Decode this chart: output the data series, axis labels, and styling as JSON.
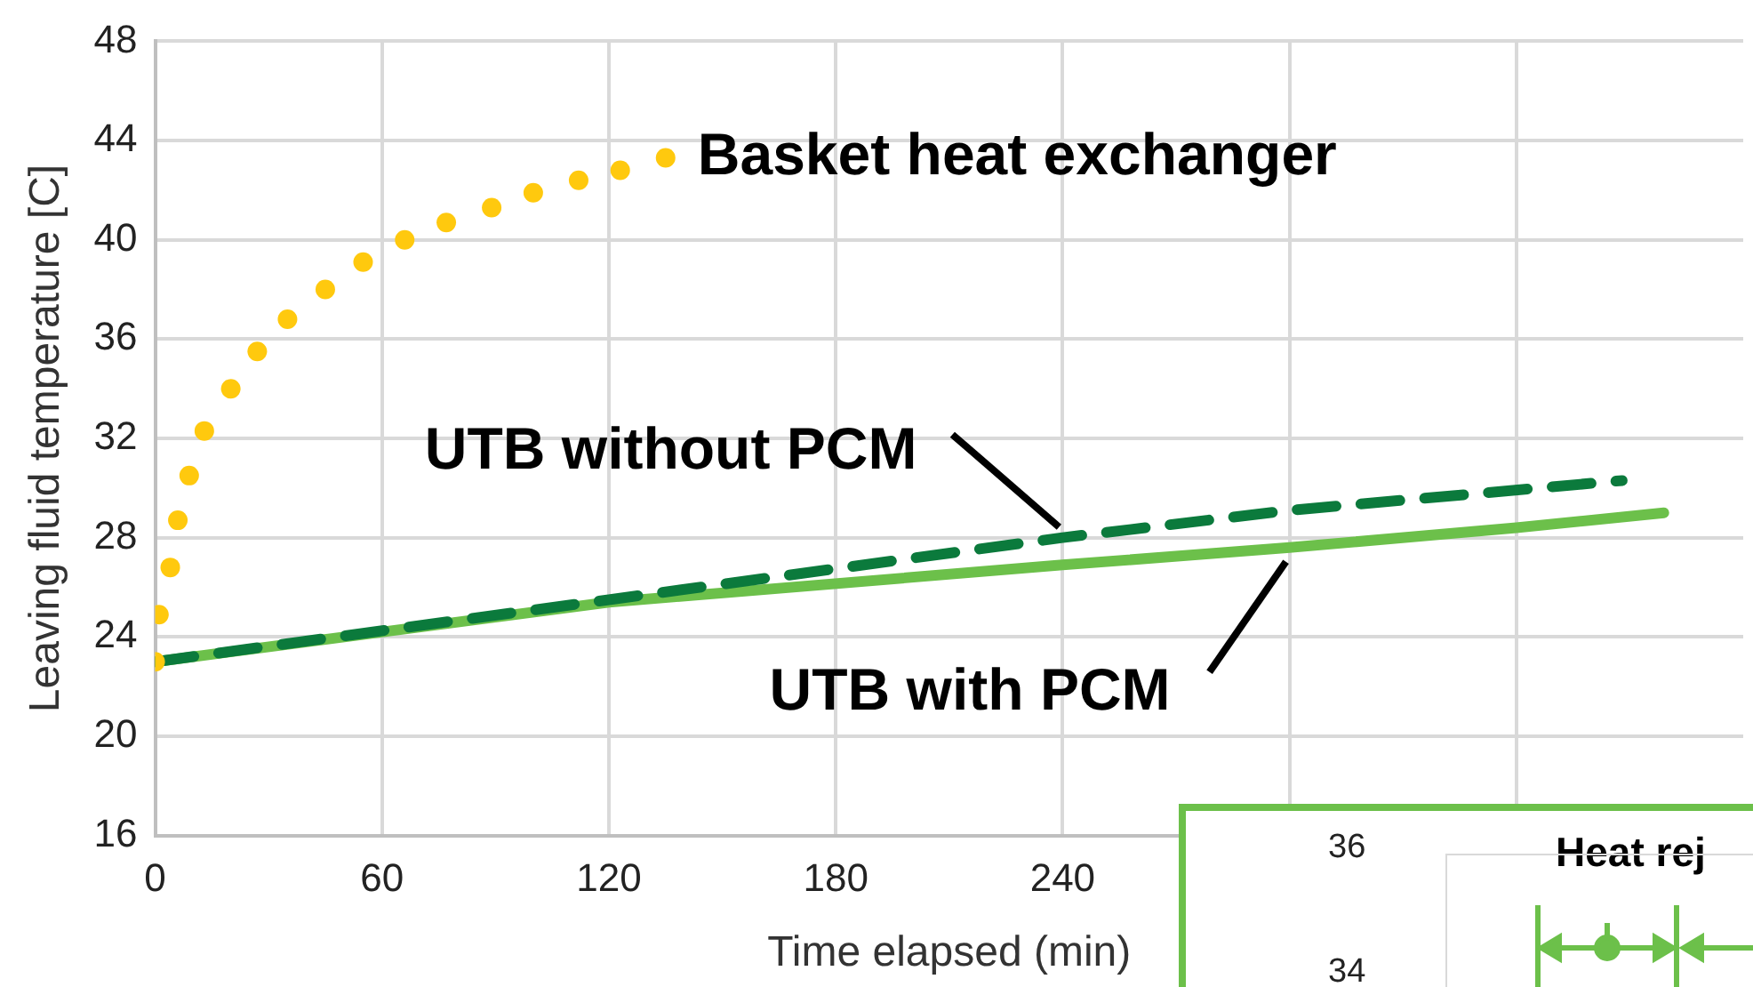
{
  "chart_data": [
    {
      "type": "line",
      "xlabel": "Time elapsed (min)",
      "ylabel": "Leaving fluid temperature [C]",
      "xlim": [
        0,
        420
      ],
      "xticks": [
        0,
        60,
        120,
        180,
        240,
        {
          "value": 300,
          "label": null
        },
        {
          "value": 360,
          "label": null
        }
      ],
      "ylim": [
        16,
        48
      ],
      "yticks": [
        16,
        20,
        24,
        28,
        32,
        36,
        40,
        44,
        48
      ],
      "grid": true,
      "legend": false,
      "series": [
        {
          "name": "Basket heat exchanger",
          "type": "scatter",
          "marker": "circle",
          "color": "#ffc90e",
          "x": [
            0,
            1,
            4,
            6,
            9,
            13,
            20,
            27,
            35,
            45,
            55,
            66,
            77,
            89,
            100,
            112,
            123,
            135
          ],
          "values": [
            23.0,
            24.9,
            26.8,
            28.7,
            30.5,
            32.3,
            34.0,
            35.5,
            36.8,
            38.0,
            39.1,
            40.0,
            40.7,
            41.3,
            41.9,
            42.4,
            42.8,
            43.3
          ]
        },
        {
          "name": "UTB without PCM",
          "type": "line",
          "line_style": "dashed",
          "color": "#0b7a3c",
          "x": [
            0,
            120,
            240,
            300,
            388
          ],
          "values": [
            23.0,
            25.5,
            28.0,
            29.1,
            30.3
          ]
        },
        {
          "name": "UTB with PCM",
          "type": "line",
          "line_style": "solid",
          "color": "#6cc04a",
          "x": [
            0,
            120,
            240,
            300,
            360,
            399
          ],
          "values": [
            23.0,
            25.4,
            26.9,
            27.6,
            28.4,
            29.0
          ]
        }
      ]
    },
    {
      "type": "other",
      "annotations": [
        "36",
        "34",
        "Heat rej"
      ]
    }
  ]
}
